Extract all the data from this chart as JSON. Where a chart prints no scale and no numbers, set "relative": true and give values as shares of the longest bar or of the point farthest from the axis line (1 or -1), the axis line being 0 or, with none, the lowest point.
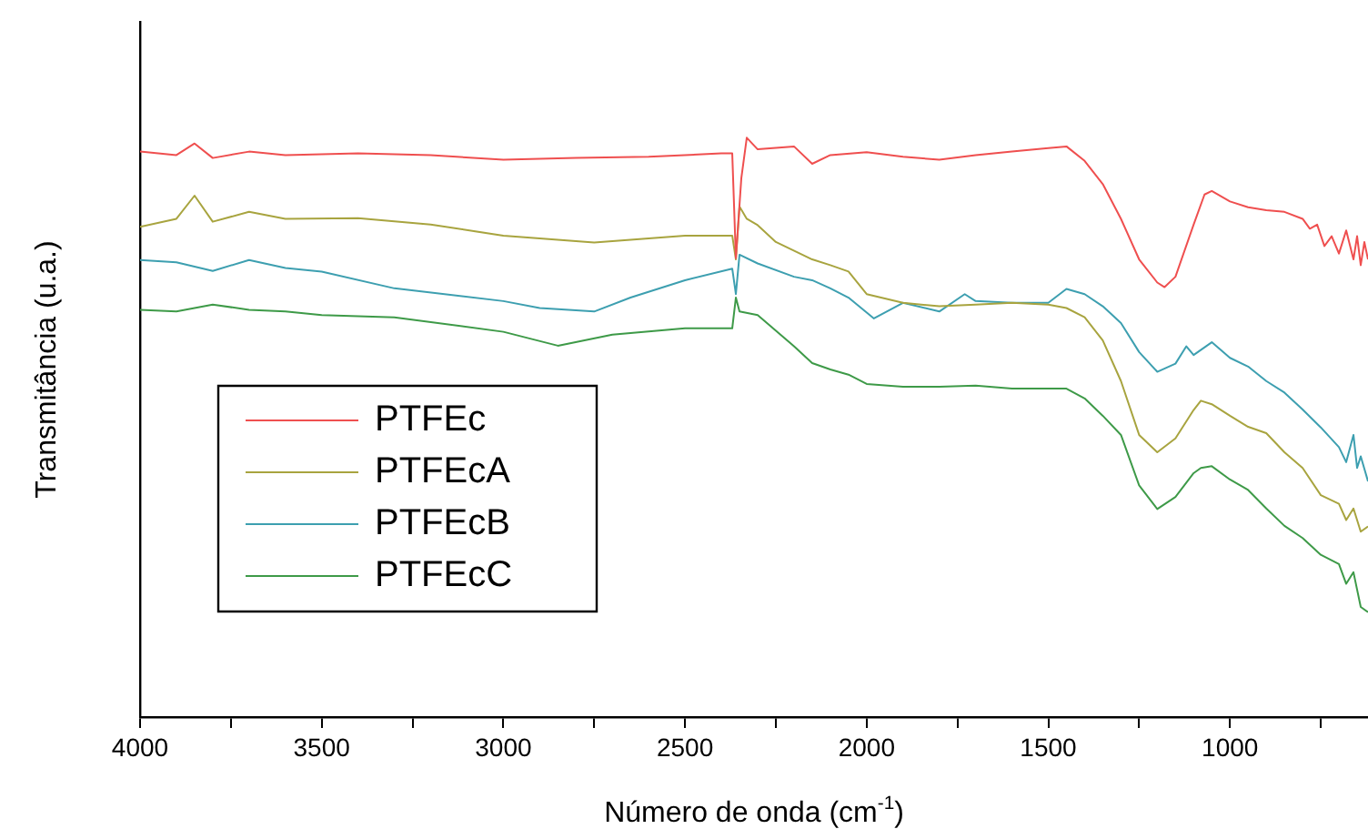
{
  "chart_data": {
    "type": "line",
    "xlabel": "Número de onda (cm$^{-1}$)",
    "ylabel": "Transmitância (u.a.)",
    "relative": true,
    "xlim": [
      4000,
      620
    ],
    "xticks": [
      4000,
      {
        "value": 3750,
        "label": null
      },
      3500,
      {
        "value": 3250,
        "label": null
      },
      3000,
      {
        "value": 2750,
        "label": null
      },
      2500,
      {
        "value": 2250,
        "label": null
      },
      2000,
      {
        "value": 1750,
        "label": null
      },
      1500,
      {
        "value": 1250,
        "label": null
      },
      1000,
      {
        "value": 750,
        "label": null
      }
    ],
    "grid": false,
    "legend": "left",
    "marker": "none",
    "line_style": "solid",
    "series": [
      {
        "name": "PTFEc",
        "color": "#ef4f4f",
        "x": [
          4000,
          3900,
          3850,
          3800,
          3700,
          3600,
          3400,
          3200,
          3000,
          2800,
          2600,
          2400,
          2370,
          2360,
          2345,
          2330,
          2300,
          2200,
          2150,
          2100,
          2000,
          1900,
          1800,
          1700,
          1600,
          1500,
          1450,
          1400,
          1350,
          1300,
          1250,
          1200,
          1180,
          1150,
          1100,
          1070,
          1050,
          1000,
          950,
          900,
          850,
          800,
          780,
          760,
          740,
          720,
          700,
          680,
          660,
          650,
          640,
          630,
          620
        ],
        "values": [
          0.976,
          0.97,
          0.99,
          0.965,
          0.976,
          0.97,
          0.973,
          0.97,
          0.962,
          0.965,
          0.967,
          0.973,
          0.973,
          0.792,
          0.93,
          1,
          0.98,
          0.985,
          0.955,
          0.97,
          0.975,
          0.967,
          0.962,
          0.97,
          0.976,
          0.982,
          0.985,
          0.96,
          0.92,
          0.86,
          0.79,
          0.75,
          0.742,
          0.76,
          0.85,
          0.902,
          0.908,
          0.89,
          0.88,
          0.875,
          0.872,
          0.86,
          0.843,
          0.85,
          0.813,
          0.83,
          0.8,
          0.84,
          0.79,
          0.83,
          0.78,
          0.82,
          0.79
        ]
      },
      {
        "name": "PTFEcA",
        "color": "#a8a43f",
        "x": [
          4000,
          3900,
          3850,
          3800,
          3700,
          3600,
          3400,
          3200,
          3000,
          2900,
          2750,
          2600,
          2500,
          2370,
          2360,
          2350,
          2330,
          2300,
          2250,
          2150,
          2100,
          2050,
          2000,
          1900,
          1800,
          1700,
          1600,
          1500,
          1450,
          1400,
          1350,
          1300,
          1250,
          1200,
          1150,
          1100,
          1080,
          1050,
          1000,
          950,
          900,
          850,
          800,
          750,
          700,
          680,
          660,
          640,
          620
        ],
        "values": [
          0.846,
          0.86,
          0.9,
          0.855,
          0.872,
          0.86,
          0.861,
          0.85,
          0.831,
          0.826,
          0.819,
          0.826,
          0.831,
          0.831,
          0.79,
          0.881,
          0.86,
          0.849,
          0.82,
          0.79,
          0.78,
          0.769,
          0.73,
          0.715,
          0.709,
          0.712,
          0.715,
          0.712,
          0.706,
          0.69,
          0.65,
          0.58,
          0.487,
          0.457,
          0.481,
          0.53,
          0.546,
          0.54,
          0.52,
          0.501,
          0.49,
          0.457,
          0.43,
          0.383,
          0.368,
          0.34,
          0.36,
          0.32,
          0.329
        ]
      },
      {
        "name": "PTFEcB",
        "color": "#3d9fb0",
        "x": [
          4000,
          3900,
          3800,
          3700,
          3600,
          3500,
          3300,
          3000,
          2900,
          2750,
          2650,
          2500,
          2370,
          2360,
          2350,
          2300,
          2200,
          2150,
          2100,
          2050,
          1980,
          1900,
          1800,
          1730,
          1700,
          1600,
          1500,
          1450,
          1400,
          1350,
          1300,
          1250,
          1200,
          1150,
          1120,
          1100,
          1050,
          1000,
          950,
          900,
          850,
          800,
          750,
          700,
          680,
          660,
          650,
          640,
          620
        ],
        "values": [
          0.789,
          0.785,
          0.77,
          0.789,
          0.775,
          0.769,
          0.74,
          0.718,
          0.706,
          0.7,
          0.724,
          0.754,
          0.774,
          0.73,
          0.798,
          0.783,
          0.76,
          0.754,
          0.74,
          0.724,
          0.688,
          0.715,
          0.7,
          0.73,
          0.718,
          0.715,
          0.715,
          0.739,
          0.73,
          0.709,
          0.68,
          0.63,
          0.596,
          0.61,
          0.64,
          0.625,
          0.647,
          0.62,
          0.605,
          0.58,
          0.56,
          0.531,
          0.5,
          0.466,
          0.44,
          0.487,
          0.43,
          0.45,
          0.407
        ]
      },
      {
        "name": "PTFEcC",
        "color": "#3e9a48",
        "x": [
          4000,
          3900,
          3800,
          3700,
          3600,
          3500,
          3300,
          3000,
          2850,
          2700,
          2500,
          2370,
          2360,
          2350,
          2300,
          2200,
          2150,
          2100,
          2050,
          2000,
          1900,
          1800,
          1700,
          1600,
          1500,
          1450,
          1400,
          1350,
          1300,
          1250,
          1200,
          1150,
          1100,
          1080,
          1050,
          1000,
          950,
          900,
          850,
          800,
          750,
          700,
          680,
          660,
          640,
          620
        ],
        "values": [
          0.703,
          0.7,
          0.712,
          0.703,
          0.7,
          0.694,
          0.69,
          0.665,
          0.641,
          0.66,
          0.671,
          0.671,
          0.724,
          0.7,
          0.694,
          0.64,
          0.611,
          0.6,
          0.591,
          0.575,
          0.57,
          0.57,
          0.572,
          0.567,
          0.567,
          0.567,
          0.55,
          0.52,
          0.487,
          0.4,
          0.359,
          0.38,
          0.421,
          0.43,
          0.433,
          0.41,
          0.392,
          0.36,
          0.33,
          0.309,
          0.28,
          0.264,
          0.23,
          0.25,
          0.19,
          0.181
        ]
      }
    ]
  }
}
